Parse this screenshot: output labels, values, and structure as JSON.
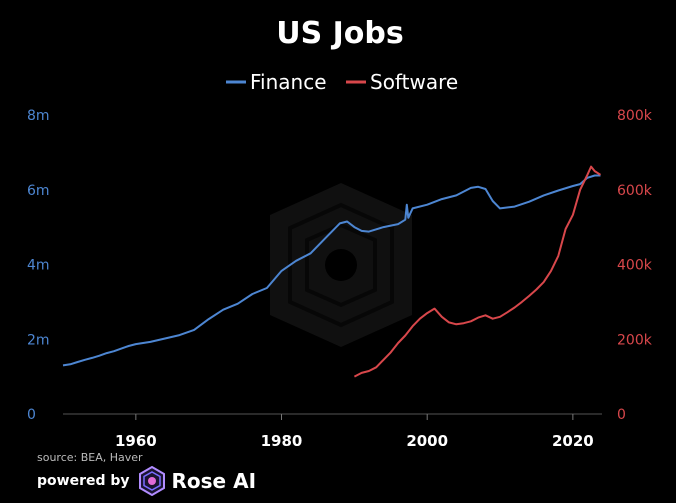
{
  "chart_data": {
    "type": "line",
    "title": "US Jobs",
    "source": "source: BEA, Haver",
    "legend_position": "top-center",
    "grid": false,
    "xlim": [
      1950,
      2024
    ],
    "x_ticks": [
      {
        "value": 1960,
        "label": "1960"
      },
      {
        "value": 1980,
        "label": "1980"
      },
      {
        "value": 2000,
        "label": "2000"
      },
      {
        "value": 2020,
        "label": "2020"
      }
    ],
    "y_left": {
      "lim": [
        0,
        8000000
      ],
      "ticks": [
        {
          "value": 0,
          "label": "0"
        },
        {
          "value": 2000000,
          "label": "2m"
        },
        {
          "value": 4000000,
          "label": "4m"
        },
        {
          "value": 6000000,
          "label": "6m"
        },
        {
          "value": 8000000,
          "label": "8m"
        }
      ],
      "color": "#4d86d2"
    },
    "y_right": {
      "lim": [
        0,
        800000
      ],
      "ticks": [
        {
          "value": 0,
          "label": "0"
        },
        {
          "value": 200000,
          "label": "200k"
        },
        {
          "value": 400000,
          "label": "400k"
        },
        {
          "value": 600000,
          "label": "600k"
        },
        {
          "value": 800000,
          "label": "800k"
        }
      ],
      "color": "#d8474b"
    },
    "series": [
      {
        "name": "Finance",
        "axis": "left",
        "color": "#4d86d2",
        "points": [
          [
            1950,
            1300000
          ],
          [
            1951,
            1330000
          ],
          [
            1952,
            1390000
          ],
          [
            1953,
            1450000
          ],
          [
            1954,
            1500000
          ],
          [
            1955,
            1560000
          ],
          [
            1956,
            1630000
          ],
          [
            1957,
            1680000
          ],
          [
            1958,
            1750000
          ],
          [
            1959,
            1820000
          ],
          [
            1960,
            1870000
          ],
          [
            1962,
            1930000
          ],
          [
            1964,
            2020000
          ],
          [
            1966,
            2110000
          ],
          [
            1968,
            2250000
          ],
          [
            1970,
            2540000
          ],
          [
            1972,
            2790000
          ],
          [
            1974,
            2950000
          ],
          [
            1976,
            3210000
          ],
          [
            1978,
            3370000
          ],
          [
            1980,
            3830000
          ],
          [
            1982,
            4100000
          ],
          [
            1984,
            4300000
          ],
          [
            1986,
            4700000
          ],
          [
            1988,
            5100000
          ],
          [
            1989,
            5150000
          ],
          [
            1990,
            5000000
          ],
          [
            1991,
            4900000
          ],
          [
            1992,
            4880000
          ],
          [
            1994,
            5000000
          ],
          [
            1996,
            5080000
          ],
          [
            1997,
            5200000
          ],
          [
            1997.2,
            5600000
          ],
          [
            1997.4,
            5250000
          ],
          [
            1998,
            5500000
          ],
          [
            2000,
            5600000
          ],
          [
            2002,
            5750000
          ],
          [
            2004,
            5850000
          ],
          [
            2006,
            6050000
          ],
          [
            2007,
            6080000
          ],
          [
            2008,
            6020000
          ],
          [
            2009,
            5700000
          ],
          [
            2010,
            5500000
          ],
          [
            2012,
            5550000
          ],
          [
            2014,
            5680000
          ],
          [
            2016,
            5850000
          ],
          [
            2018,
            5980000
          ],
          [
            2020,
            6100000
          ],
          [
            2021,
            6150000
          ],
          [
            2022,
            6320000
          ],
          [
            2023,
            6380000
          ],
          [
            2023.8,
            6380000
          ]
        ]
      },
      {
        "name": "Software",
        "axis": "right",
        "color": "#d8474b",
        "points": [
          [
            1990,
            100000
          ],
          [
            1991,
            110000
          ],
          [
            1992,
            115000
          ],
          [
            1993,
            125000
          ],
          [
            1994,
            145000
          ],
          [
            1995,
            165000
          ],
          [
            1996,
            190000
          ],
          [
            1997,
            210000
          ],
          [
            1998,
            235000
          ],
          [
            1999,
            255000
          ],
          [
            2000,
            270000
          ],
          [
            2001,
            282000
          ],
          [
            2002,
            260000
          ],
          [
            2003,
            245000
          ],
          [
            2004,
            240000
          ],
          [
            2005,
            243000
          ],
          [
            2006,
            248000
          ],
          [
            2007,
            258000
          ],
          [
            2008,
            264000
          ],
          [
            2009,
            255000
          ],
          [
            2010,
            260000
          ],
          [
            2011,
            272000
          ],
          [
            2012,
            285000
          ],
          [
            2013,
            300000
          ],
          [
            2014,
            316000
          ],
          [
            2015,
            333000
          ],
          [
            2016,
            353000
          ],
          [
            2017,
            383000
          ],
          [
            2018,
            423000
          ],
          [
            2019,
            495000
          ],
          [
            2020,
            533000
          ],
          [
            2021,
            600000
          ],
          [
            2022,
            640000
          ],
          [
            2022.5,
            662000
          ],
          [
            2023,
            650000
          ],
          [
            2023.8,
            640000
          ]
        ]
      }
    ]
  },
  "footer": {
    "powered_by": "powered by",
    "brand": "Rose AI"
  }
}
